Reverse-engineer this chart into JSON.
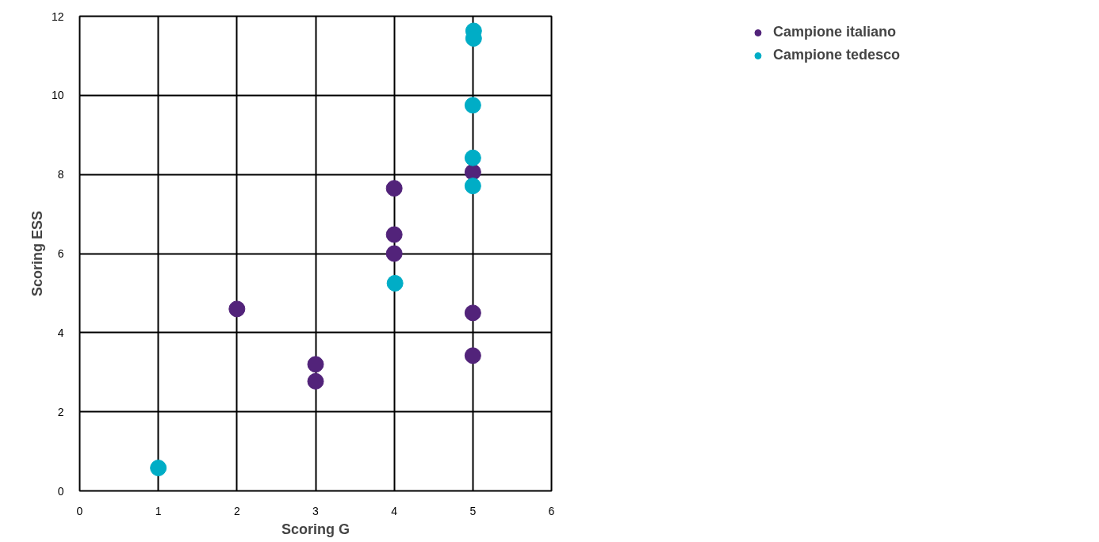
{
  "chart_data": {
    "type": "scatter",
    "xlabel": "Scoring G",
    "ylabel": "Scoring ESS",
    "xlim": [
      0,
      6
    ],
    "xticks": [
      0,
      1,
      2,
      3,
      4,
      5,
      6
    ],
    "ylim": [
      0,
      12
    ],
    "yticks": [
      0,
      2,
      4,
      6,
      8,
      10,
      12
    ],
    "grid": true,
    "legend": "top right",
    "marker": "circle",
    "series": [
      {
        "name": "Campione italiano",
        "color": "#52237a",
        "x": [
          2,
          3,
          3,
          4,
          4,
          4,
          5,
          5,
          5
        ],
        "values": [
          4.6,
          3.2,
          2.77,
          7.65,
          6.48,
          6.0,
          8.06,
          4.5,
          3.42
        ]
      },
      {
        "name": "Campione tedesco",
        "color": "#00adc6",
        "x": [
          1,
          4.01,
          5.01,
          5.01,
          5,
          5,
          5
        ],
        "values": [
          0.58,
          5.25,
          11.63,
          11.44,
          9.75,
          8.42,
          7.71
        ]
      }
    ]
  }
}
